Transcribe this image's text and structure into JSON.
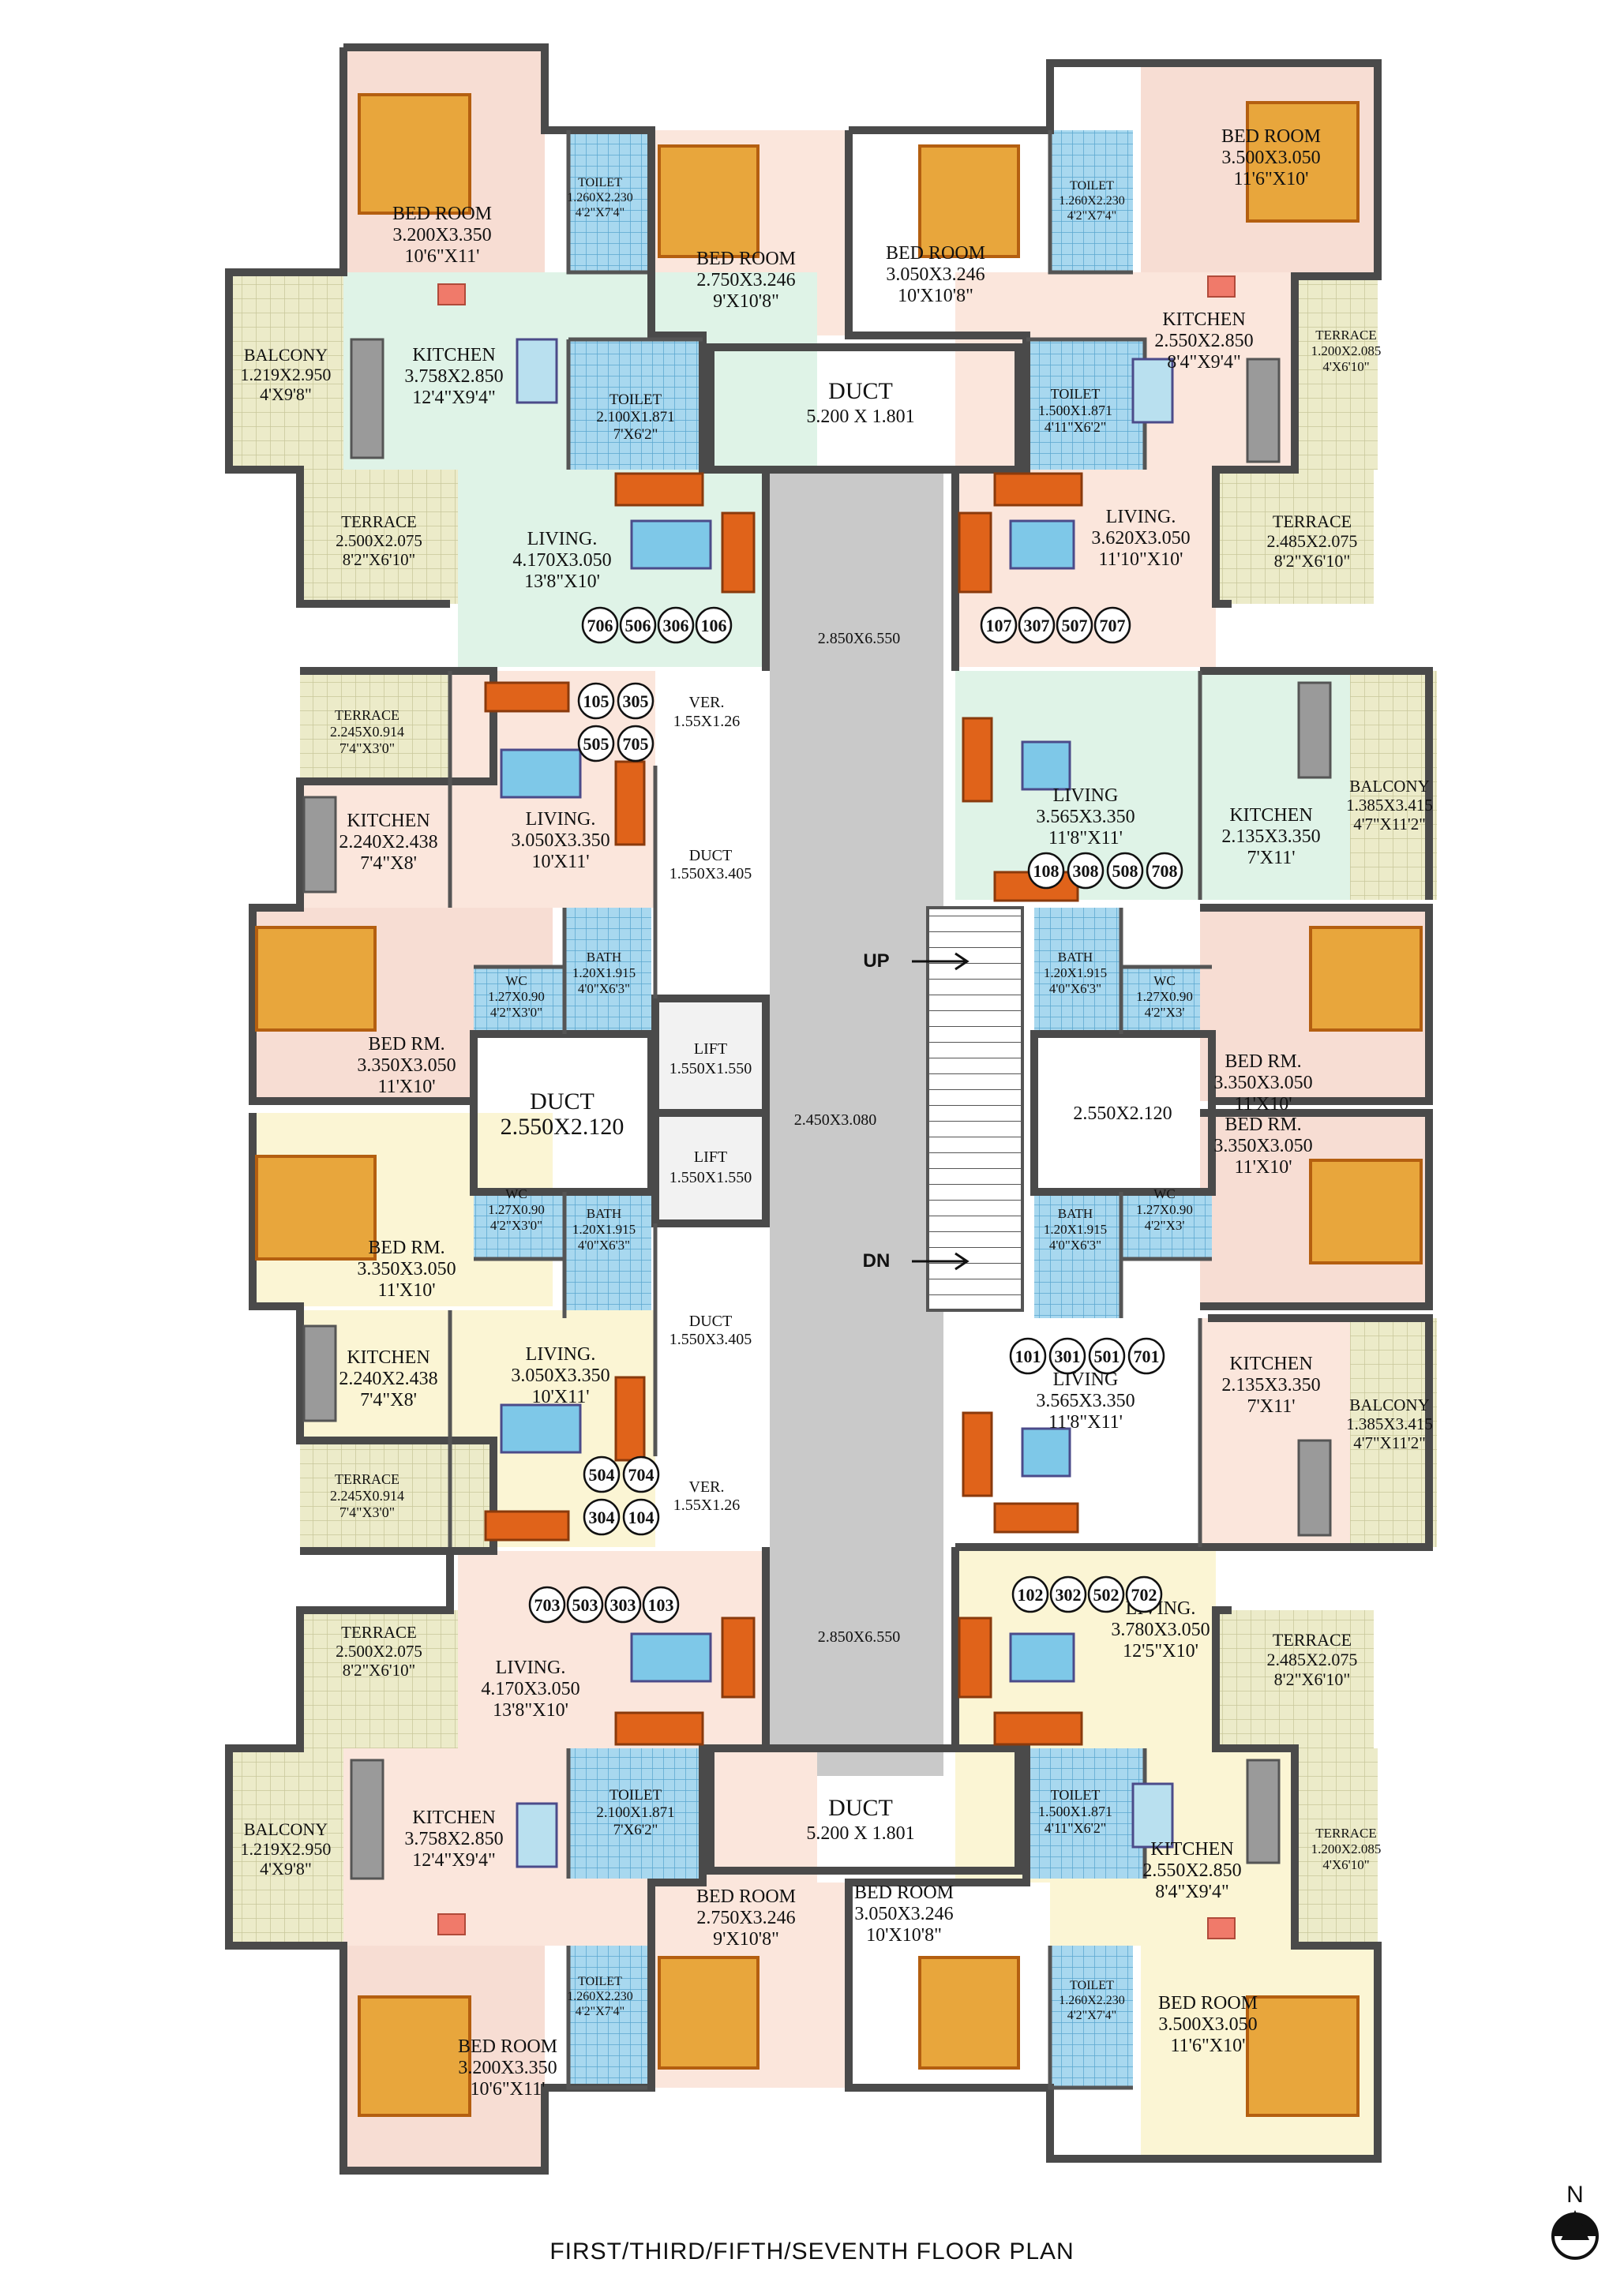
{
  "title": "FIRST/THIRD/FIFTH/SEVENTH FLOOR PLAN",
  "north": "N",
  "colors": {
    "bedroom_pink": "#f7ddd3",
    "living_pink": "#fbe6dc",
    "mint": "#dff3e7",
    "cream": "#fbf5d4",
    "terrace": "#e8e8c6",
    "corridor": "#c9c9c9",
    "toilet_blue": "#9fd3ec",
    "wall": "#4a4a4a",
    "sofa": "#e0631a",
    "bed_gold": "#e8a63c"
  },
  "core": {
    "duct_top": "DUCT",
    "duct_top_dim": "5.200 X 1.801",
    "duct_bottom": "DUCT",
    "duct_bottom_dim": "5.200 X 1.801",
    "corridor_top_dim": "2.850X6.550",
    "corridor_mid_dim": "2.450X3.080",
    "corridor_bottom_dim": "2.850X6.550",
    "lift1": "LIFT",
    "lift1_dim": "1.550X1.550",
    "lift2": "LIFT",
    "lift2_dim": "1.550X1.550",
    "duct_center": "DUCT",
    "duct_center_dim": "2.550X2.120",
    "duct_right_dim": "2.550X2.120",
    "duct_small_top": "DUCT",
    "duct_small_top_dim": "1.550X3.405",
    "duct_small_bottom": "DUCT",
    "duct_small_bottom_dim": "1.550X3.405",
    "ver_top": "VER.",
    "ver_top_dim": "1.55X1.26",
    "ver_bottom": "VER.",
    "ver_bottom_dim": "1.55X1.26",
    "stair_up": "UP",
    "stair_dn": "DN"
  },
  "rooms": {
    "tl_bed1": {
      "name": "BED ROOM",
      "m": "3.200X3.350",
      "f": "10'6\"X11'"
    },
    "tl_bed2": {
      "name": "BED ROOM",
      "m": "2.750X3.246",
      "f": "9'X10'8\""
    },
    "tl_toilet1": {
      "name": "TOILET",
      "m": "1.260X2.230",
      "f": "4'2\"X7'4\""
    },
    "tl_toilet2": {
      "name": "TOILET",
      "m": "2.100X1.871",
      "f": "7'X6'2\""
    },
    "tl_balcony": {
      "name": "BALCONY",
      "m": "1.219X2.950",
      "f": "4'X9'8\""
    },
    "tl_kitchen": {
      "name": "KITCHEN",
      "m": "3.758X2.850",
      "f": "12'4\"X9'4\""
    },
    "tl_terrace": {
      "name": "TERRACE",
      "m": "2.500X2.075",
      "f": "8'2\"X6'10\""
    },
    "tl_living": {
      "name": "LIVING.",
      "m": "4.170X3.050",
      "f": "13'8\"X10'"
    },
    "tr_bed1": {
      "name": "BED ROOM",
      "m": "3.500X3.050",
      "f": "11'6\"X10'"
    },
    "tr_bed2": {
      "name": "BED ROOM",
      "m": "3.050X3.246",
      "f": "10'X10'8\""
    },
    "tr_toilet1": {
      "name": "TOILET",
      "m": "1.260X2.230",
      "f": "4'2\"X7'4\""
    },
    "tr_toilet2": {
      "name": "TOILET",
      "m": "1.500X1.871",
      "f": "4'11\"X6'2\""
    },
    "tr_kitchen": {
      "name": "KITCHEN",
      "m": "2.550X2.850",
      "f": "8'4\"X9'4\""
    },
    "tr_terrace_small": {
      "name": "TERRACE",
      "m": "1.200X2.085",
      "f": "4'X6'10\""
    },
    "tr_terrace": {
      "name": "TERRACE",
      "m": "2.485X2.075",
      "f": "8'2\"X6'10\""
    },
    "tr_living": {
      "name": "LIVING.",
      "m": "3.620X3.050",
      "f": "11'10\"X10'"
    },
    "ml_terrace": {
      "name": "TERRACE",
      "m": "2.245X0.914",
      "f": "7'4\"X3'0\""
    },
    "ml_living": {
      "name": "LIVING.",
      "m": "3.050X3.350",
      "f": "10'X11'"
    },
    "ml_kitchen": {
      "name": "KITCHEN",
      "m": "2.240X2.438",
      "f": "7'4\"X8'"
    },
    "ml_bed": {
      "name": "BED RM.",
      "m": "3.350X3.050",
      "f": "11'X10'"
    },
    "ml_wc": {
      "name": "WC",
      "m": "1.27X0.90",
      "f": "4'2\"X3'0\""
    },
    "ml_bath": {
      "name": "BATH",
      "m": "1.20X1.915",
      "f": "4'0\"X6'3\""
    },
    "mr_living": {
      "name": "LIVING",
      "m": "3.565X3.350",
      "f": "11'8\"X11'"
    },
    "mr_kitchen": {
      "name": "KITCHEN",
      "m": "2.135X3.350",
      "f": "7'X11'"
    },
    "mr_balcony": {
      "name": "BALCONY",
      "m": "1.385X3.415",
      "f": "4'7\"X11'2\""
    },
    "mr_bath": {
      "name": "BATH",
      "m": "1.20X1.915",
      "f": "4'0\"X6'3\""
    },
    "mr_wc": {
      "name": "WC",
      "m": "1.27X0.90",
      "f": "4'2\"X3'"
    },
    "mr_bed": {
      "name": "BED RM.",
      "m": "3.350X3.050",
      "f": "11'X10'"
    },
    "ml2_bed": {
      "name": "BED RM.",
      "m": "3.350X3.050",
      "f": "11'X10'"
    },
    "ml2_wc": {
      "name": "WC",
      "m": "1.27X0.90",
      "f": "4'2\"X3'0\""
    },
    "ml2_bath": {
      "name": "BATH",
      "m": "1.20X1.915",
      "f": "4'0\"X6'3\""
    },
    "ml2_kitchen": {
      "name": "KITCHEN",
      "m": "2.240X2.438",
      "f": "7'4\"X8'"
    },
    "ml2_living": {
      "name": "LIVING.",
      "m": "3.050X3.350",
      "f": "10'X11'"
    },
    "ml2_terrace": {
      "name": "TERRACE",
      "m": "2.245X0.914",
      "f": "7'4\"X3'0\""
    },
    "mr2_bed": {
      "name": "BED RM.",
      "m": "3.350X3.050",
      "f": "11'X10'"
    },
    "mr2_bath": {
      "name": "BATH",
      "m": "1.20X1.915",
      "f": "4'0\"X6'3\""
    },
    "mr2_wc": {
      "name": "WC",
      "m": "1.27X0.90",
      "f": "4'2\"X3'"
    },
    "mr2_living": {
      "name": "LIVING",
      "m": "3.565X3.350",
      "f": "11'8\"X11'"
    },
    "mr2_kitchen": {
      "name": "KITCHEN",
      "m": "2.135X3.350",
      "f": "7'X11'"
    },
    "mr2_balcony": {
      "name": "BALCONY",
      "m": "1.385X3.415",
      "f": "4'7\"X11'2\""
    },
    "bl_terrace": {
      "name": "TERRACE",
      "m": "2.500X2.075",
      "f": "8'2\"X6'10\""
    },
    "bl_living": {
      "name": "LIVING.",
      "m": "4.170X3.050",
      "f": "13'8\"X10'"
    },
    "bl_balcony": {
      "name": "BALCONY",
      "m": "1.219X2.950",
      "f": "4'X9'8\""
    },
    "bl_kitchen": {
      "name": "KITCHEN",
      "m": "3.758X2.850",
      "f": "12'4\"X9'4\""
    },
    "bl_toilet2": {
      "name": "TOILET",
      "m": "2.100X1.871",
      "f": "7'X6'2\""
    },
    "bl_bed2": {
      "name": "BED ROOM",
      "m": "2.750X3.246",
      "f": "9'X10'8\""
    },
    "bl_toilet1": {
      "name": "TOILET",
      "m": "1.260X2.230",
      "f": "4'2\"X7'4\""
    },
    "bl_bed1": {
      "name": "BED ROOM",
      "m": "3.200X3.350",
      "f": "10'6\"X11'"
    },
    "br_living": {
      "name": "LIVING.",
      "m": "3.780X3.050",
      "f": "12'5\"X10'"
    },
    "br_terrace": {
      "name": "TERRACE",
      "m": "2.485X2.075",
      "f": "8'2\"X6'10\""
    },
    "br_toilet2": {
      "name": "TOILET",
      "m": "1.500X1.871",
      "f": "4'11\"X6'2\""
    },
    "br_kitchen": {
      "name": "KITCHEN",
      "m": "2.550X2.850",
      "f": "8'4\"X9'4\""
    },
    "br_terrace_small": {
      "name": "TERRACE",
      "m": "1.200X2.085",
      "f": "4'X6'10\""
    },
    "br_bed2": {
      "name": "BED ROOM",
      "m": "3.050X3.246",
      "f": "10'X10'8\""
    },
    "br_toilet1": {
      "name": "TOILET",
      "m": "1.260X2.230",
      "f": "4'2\"X7'4\""
    },
    "br_bed1": {
      "name": "BED ROOM",
      "m": "3.500X3.050",
      "f": "11'6\"X10'"
    }
  },
  "unit_numbers": {
    "tl": [
      "706",
      "506",
      "306",
      "106"
    ],
    "tr": [
      "107",
      "307",
      "507",
      "707"
    ],
    "ml_a": [
      "105",
      "305"
    ],
    "ml_b": [
      "505",
      "705"
    ],
    "mr": [
      "108",
      "308",
      "508",
      "708"
    ],
    "ml2_a": [
      "504",
      "704"
    ],
    "ml2_b": [
      "304",
      "104"
    ],
    "mr2": [
      "101",
      "301",
      "501",
      "701"
    ],
    "bl": [
      "703",
      "503",
      "303",
      "103"
    ],
    "br": [
      "102",
      "302",
      "502",
      "702"
    ]
  }
}
